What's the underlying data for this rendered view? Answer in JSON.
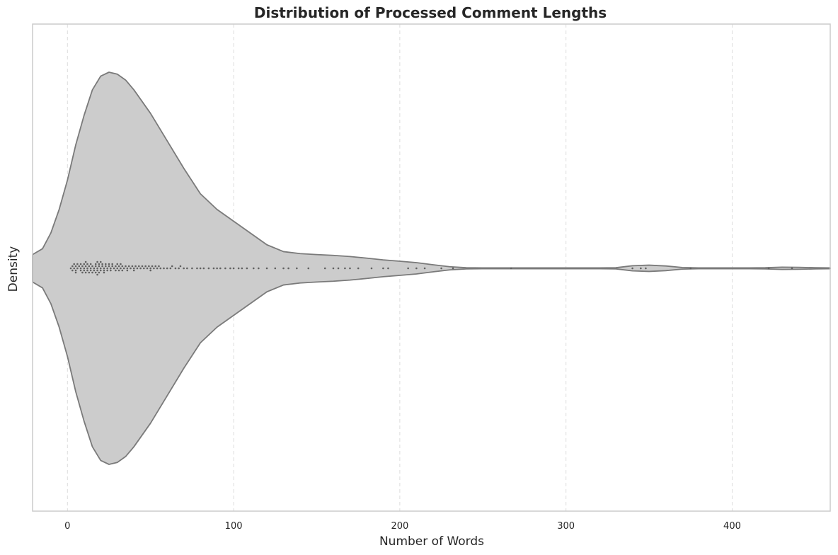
{
  "chart_data": {
    "type": "violin",
    "title": "Distribution of Processed Comment Lengths",
    "xlabel": "Number of Words",
    "ylabel": "Density",
    "xlim": [
      -21,
      459
    ],
    "xticks": [
      0,
      100,
      200,
      300,
      400
    ],
    "grid": "vertical dashed",
    "colors": {
      "violin_fill": "#cccccc",
      "violin_edge": "#7a7a7a",
      "points": "#606060",
      "grid": "#dddddd",
      "frame": "#cccccc"
    },
    "density_profile": {
      "x": [
        -21,
        -15,
        -10,
        -5,
        0,
        5,
        10,
        15,
        20,
        25,
        30,
        35,
        40,
        50,
        60,
        70,
        80,
        90,
        100,
        110,
        120,
        130,
        140,
        150,
        160,
        170,
        180,
        190,
        200,
        210,
        220,
        230,
        240,
        250,
        260,
        270,
        280,
        290,
        300,
        310,
        320,
        330,
        340,
        350,
        360,
        370,
        380,
        390,
        400,
        410,
        420,
        430,
        440,
        450,
        459
      ],
      "half_width": [
        0.07,
        0.1,
        0.18,
        0.3,
        0.45,
        0.63,
        0.78,
        0.91,
        0.98,
        1.0,
        0.99,
        0.96,
        0.91,
        0.79,
        0.65,
        0.51,
        0.38,
        0.3,
        0.24,
        0.18,
        0.12,
        0.085,
        0.075,
        0.07,
        0.066,
        0.06,
        0.052,
        0.043,
        0.036,
        0.029,
        0.018,
        0.008,
        0.003,
        0.002,
        0.002,
        0.002,
        0.002,
        0.002,
        0.002,
        0.002,
        0.002,
        0.003,
        0.013,
        0.016,
        0.012,
        0.004,
        0.002,
        0.002,
        0.002,
        0.002,
        0.003,
        0.006,
        0.005,
        0.003,
        0.002
      ]
    },
    "points_word_counts": [
      2,
      3,
      3,
      4,
      4,
      5,
      5,
      5,
      6,
      6,
      7,
      8,
      8,
      8,
      9,
      9,
      10,
      10,
      10,
      11,
      11,
      11,
      12,
      12,
      12,
      13,
      13,
      14,
      14,
      14,
      15,
      15,
      16,
      16,
      17,
      17,
      17,
      18,
      18,
      18,
      18,
      19,
      19,
      19,
      20,
      20,
      20,
      21,
      21,
      22,
      22,
      22,
      23,
      23,
      24,
      24,
      25,
      25,
      26,
      26,
      27,
      27,
      28,
      29,
      29,
      30,
      30,
      31,
      31,
      32,
      32,
      33,
      33,
      34,
      35,
      36,
      36,
      37,
      38,
      39,
      40,
      40,
      41,
      42,
      43,
      44,
      45,
      46,
      47,
      48,
      49,
      50,
      50,
      51,
      52,
      53,
      54,
      55,
      56,
      58,
      60,
      62,
      63,
      65,
      67,
      68,
      70,
      72,
      75,
      78,
      80,
      82,
      85,
      88,
      90,
      92,
      95,
      98,
      100,
      103,
      105,
      108,
      112,
      115,
      120,
      125,
      130,
      133,
      138,
      145,
      155,
      160,
      163,
      167,
      170,
      175,
      183,
      190,
      193,
      205,
      210,
      215,
      225,
      232,
      267,
      340,
      345,
      348,
      375,
      422,
      436
    ]
  }
}
